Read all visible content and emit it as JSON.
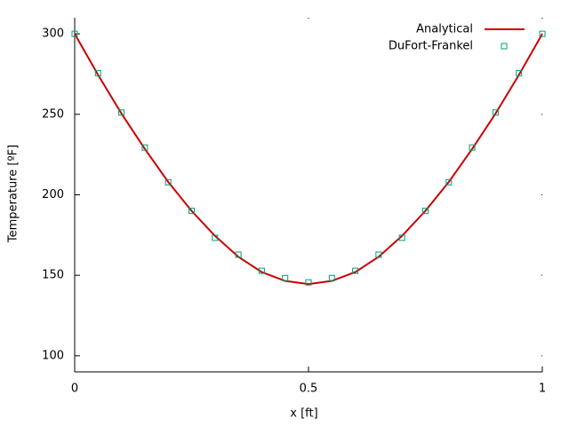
{
  "chart_data": {
    "type": "line",
    "xlabel": "x [ft]",
    "ylabel": "Temperature [ºF]",
    "xlim": [
      0,
      1
    ],
    "ylim": [
      90,
      310
    ],
    "xticks": [
      0,
      0.5,
      1
    ],
    "yticks": [
      100,
      150,
      200,
      250,
      300
    ],
    "legend": "top-right",
    "x": [
      0,
      0.05,
      0.1,
      0.15,
      0.2,
      0.25,
      0.3,
      0.35,
      0.4,
      0.45,
      0.5,
      0.55,
      0.6,
      0.65,
      0.7,
      0.75,
      0.8,
      0.85,
      0.9,
      0.95,
      1
    ],
    "series": [
      {
        "name": "Analytical",
        "type": "line",
        "color": "#cc0000",
        "values": [
          300,
          274.5,
          250.5,
          228.5,
          208,
          190,
          174.5,
          161.5,
          152,
          146.5,
          144.5,
          146.5,
          152,
          161.5,
          174.5,
          190,
          208,
          228.5,
          250.5,
          274.5,
          300
        ]
      },
      {
        "name": "DuFort-Frankel",
        "type": "scatter",
        "color": "#009e73",
        "values": [
          300,
          275.6,
          251.1,
          229.4,
          207.8,
          190,
          173.3,
          162.8,
          152.8,
          148.3,
          145.6,
          148.3,
          152.8,
          162.8,
          173.3,
          190,
          207.8,
          229.4,
          251.1,
          275.6,
          300
        ]
      }
    ]
  }
}
